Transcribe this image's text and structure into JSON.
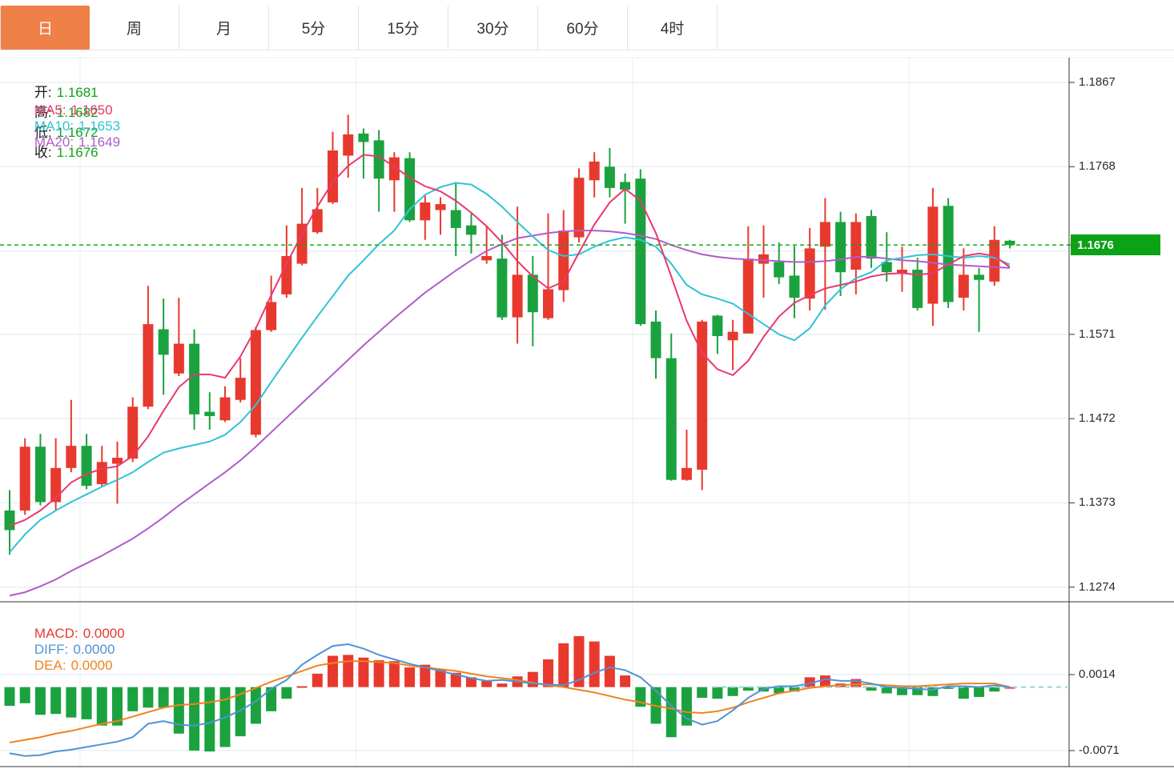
{
  "tabs": [
    {
      "label": "日",
      "active": true
    },
    {
      "label": "周",
      "active": false
    },
    {
      "label": "月",
      "active": false
    },
    {
      "label": "5分",
      "active": false
    },
    {
      "label": "15分",
      "active": false
    },
    {
      "label": "30分",
      "active": false
    },
    {
      "label": "60分",
      "active": false
    },
    {
      "label": "4时",
      "active": false
    }
  ],
  "ohlc_legend": {
    "open_label": "开:",
    "open": "1.1681",
    "high_label": "高:",
    "high": "1.1682",
    "low_label": "低:",
    "low": "1.1672",
    "close_label": "收:",
    "close": "1.1676"
  },
  "ma_legend": {
    "ma5_label": "MA5:",
    "ma5": "1.1650",
    "ma10_label": "MA10:",
    "ma10": "1.1653",
    "ma20_label": "MA20:",
    "ma20": "1.1649"
  },
  "macd_legend": {
    "macd_label": "MACD:",
    "macd": "0.0000",
    "diff_label": "DIFF:",
    "diff": "0.0000",
    "dea_label": "DEA:",
    "dea": "0.0000"
  },
  "current_price": {
    "value": 1.1676,
    "label": "1.1676"
  },
  "colors": {
    "up": "#e8392e",
    "down": "#1ba23f",
    "ma5": "#e8396e",
    "ma10": "#2fc4d4",
    "ma20": "#b05cc9",
    "diff": "#4f94d4",
    "dea": "#f0821e",
    "price_line": "#16a81c",
    "badge": "#0ba216",
    "grid": "#dfe9ee",
    "grid_v": "#e8eff3",
    "axis": "#555555",
    "zero_dash": "#97d2e0",
    "ohlc_value": "#14a01a",
    "tab_active_bg": "#ee8048"
  },
  "chart_data": {
    "type": "candlestick+macd",
    "title": "",
    "price_axis": {
      "tick_labels": [
        "1.1867",
        "1.1768",
        "1.1571",
        "1.1472",
        "1.1373",
        "1.1274"
      ],
      "tick_values": [
        1.1867,
        1.1768,
        1.1571,
        1.1472,
        1.1373,
        1.1274
      ],
      "grid_values": [
        1.1867,
        1.1768,
        1.1669,
        1.1571,
        1.1472,
        1.1373,
        1.1274
      ],
      "max": 1.1896,
      "min": 1.1254
    },
    "macd_axis": {
      "tick_labels": [
        "0.0014",
        "-0.0071"
      ],
      "tick_values": [
        0.0014,
        -0.0071
      ]
    },
    "legend_position": "top-left",
    "grid": true,
    "candles_ohlc": [
      [
        1.1364,
        1.1388,
        1.1312,
        1.1341
      ],
      [
        1.1364,
        1.1449,
        1.1359,
        1.1439
      ],
      [
        1.1439,
        1.1454,
        1.137,
        1.1374
      ],
      [
        1.1374,
        1.1449,
        1.1364,
        1.1414
      ],
      [
        1.1414,
        1.1494,
        1.1409,
        1.144
      ],
      [
        1.144,
        1.1454,
        1.1389,
        1.1393
      ],
      [
        1.1395,
        1.144,
        1.1392,
        1.1421
      ],
      [
        1.1419,
        1.1445,
        1.1372,
        1.1426
      ],
      [
        1.1425,
        1.1497,
        1.1421,
        1.1486
      ],
      [
        1.1486,
        1.1628,
        1.1483,
        1.1583
      ],
      [
        1.1577,
        1.1613,
        1.15,
        1.1547
      ],
      [
        1.1525,
        1.1614,
        1.1522,
        1.156
      ],
      [
        1.156,
        1.1577,
        1.1459,
        1.1477
      ],
      [
        1.148,
        1.1503,
        1.1459,
        1.1475
      ],
      [
        1.147,
        1.151,
        1.1468,
        1.1497
      ],
      [
        1.1494,
        1.1543,
        1.1491,
        1.152
      ],
      [
        1.1453,
        1.158,
        1.145,
        1.1576
      ],
      [
        1.1576,
        1.164,
        1.1574,
        1.1609
      ],
      [
        1.1618,
        1.1699,
        1.1614,
        1.1663
      ],
      [
        1.1654,
        1.1743,
        1.1652,
        1.1701
      ],
      [
        1.1691,
        1.1743,
        1.1689,
        1.1718
      ],
      [
        1.1726,
        1.1809,
        1.1724,
        1.1787
      ],
      [
        1.1781,
        1.1829,
        1.1755,
        1.1806
      ],
      [
        1.1807,
        1.1813,
        1.1754,
        1.1797
      ],
      [
        1.1799,
        1.1811,
        1.1715,
        1.1754
      ],
      [
        1.1752,
        1.1785,
        1.1715,
        1.1779
      ],
      [
        1.1778,
        1.1785,
        1.1703,
        1.1705
      ],
      [
        1.1705,
        1.1734,
        1.1682,
        1.1726
      ],
      [
        1.1717,
        1.1732,
        1.1688,
        1.1724
      ],
      [
        1.1717,
        1.175,
        1.1663,
        1.1696
      ],
      [
        1.1699,
        1.1713,
        1.1666,
        1.1688
      ],
      [
        1.1658,
        1.1699,
        1.1654,
        1.1663
      ],
      [
        1.166,
        1.1688,
        1.1588,
        1.1591
      ],
      [
        1.1591,
        1.1721,
        1.156,
        1.1641
      ],
      [
        1.1641,
        1.1663,
        1.1557,
        1.1597
      ],
      [
        1.159,
        1.1713,
        1.1588,
        1.1624
      ],
      [
        1.1623,
        1.1717,
        1.1609,
        1.1693
      ],
      [
        1.1685,
        1.1766,
        1.1679,
        1.1755
      ],
      [
        1.1752,
        1.1785,
        1.1732,
        1.1774
      ],
      [
        1.1768,
        1.179,
        1.1732,
        1.1743
      ],
      [
        1.175,
        1.176,
        1.1701,
        1.1741
      ],
      [
        1.1754,
        1.1765,
        1.1581,
        1.1583
      ],
      [
        1.1586,
        1.1599,
        1.1519,
        1.1543
      ],
      [
        1.1543,
        1.1572,
        1.1399,
        1.14
      ],
      [
        1.14,
        1.1459,
        1.1399,
        1.1414
      ],
      [
        1.1412,
        1.1588,
        1.1388,
        1.1586
      ],
      [
        1.1593,
        1.1594,
        1.1548,
        1.1569
      ],
      [
        1.1564,
        1.1588,
        1.1529,
        1.1574
      ],
      [
        1.1572,
        1.1698,
        1.1572,
        1.166
      ],
      [
        1.1654,
        1.1699,
        1.1614,
        1.1665
      ],
      [
        1.1656,
        1.1679,
        1.163,
        1.1638
      ],
      [
        1.164,
        1.1675,
        1.159,
        1.1614
      ],
      [
        1.1613,
        1.1696,
        1.1599,
        1.1672
      ],
      [
        1.1674,
        1.1731,
        1.16,
        1.1703
      ],
      [
        1.1703,
        1.1715,
        1.1616,
        1.1644
      ],
      [
        1.1647,
        1.1713,
        1.1618,
        1.1703
      ],
      [
        1.171,
        1.1717,
        1.1649,
        1.166
      ],
      [
        1.1656,
        1.1691,
        1.1633,
        1.1644
      ],
      [
        1.1642,
        1.1674,
        1.1621,
        1.1647
      ],
      [
        1.1647,
        1.1661,
        1.1599,
        1.1602
      ],
      [
        1.1607,
        1.1743,
        1.1581,
        1.1721
      ],
      [
        1.1722,
        1.1731,
        1.1602,
        1.1609
      ],
      [
        1.1614,
        1.1672,
        1.1599,
        1.1641
      ],
      [
        1.1641,
        1.1649,
        1.1574,
        1.1635
      ],
      [
        1.1633,
        1.1698,
        1.1628,
        1.1682
      ],
      [
        1.1681,
        1.1682,
        1.1672,
        1.1676
      ]
    ],
    "ma5": [
      1.1346,
      1.1353,
      1.1364,
      1.1379,
      1.1397,
      1.1407,
      1.1413,
      1.1416,
      1.1428,
      1.1451,
      1.1481,
      1.1509,
      1.1524,
      1.1524,
      1.152,
      1.1545,
      1.1578,
      1.1617,
      1.1654,
      1.1689,
      1.1721,
      1.175,
      1.1769,
      1.1782,
      1.178,
      1.1768,
      1.1755,
      1.1745,
      1.1739,
      1.1728,
      1.1714,
      1.1698,
      1.1679,
      1.1657,
      1.1639,
      1.1625,
      1.1633,
      1.1667,
      1.17,
      1.1726,
      1.1742,
      1.1728,
      1.169,
      1.1639,
      1.1587,
      1.1549,
      1.153,
      1.1523,
      1.154,
      1.1568,
      1.1592,
      1.1608,
      1.1617,
      1.1625,
      1.1629,
      1.1633,
      1.1639,
      1.1642,
      1.1643,
      1.1641,
      1.1643,
      1.1653,
      1.1663,
      1.1666,
      1.1663,
      1.165
    ],
    "ma10": [
      1.1315,
      1.1336,
      1.1353,
      1.1364,
      1.1374,
      1.1383,
      1.1392,
      1.14,
      1.1409,
      1.1421,
      1.1432,
      1.1437,
      1.1441,
      1.1445,
      1.1453,
      1.1468,
      1.1488,
      1.1515,
      1.1541,
      1.1567,
      1.1592,
      1.1616,
      1.164,
      1.1658,
      1.1677,
      1.1693,
      1.1718,
      1.1735,
      1.1744,
      1.1749,
      1.1747,
      1.1736,
      1.1721,
      1.1703,
      1.1686,
      1.167,
      1.1663,
      1.1665,
      1.1674,
      1.1681,
      1.1685,
      1.1682,
      1.1674,
      1.1654,
      1.1629,
      1.1618,
      1.1613,
      1.1607,
      1.1595,
      1.1583,
      1.1571,
      1.1564,
      1.1578,
      1.1605,
      1.1624,
      1.1637,
      1.1644,
      1.1658,
      1.1661,
      1.1664,
      1.1665,
      1.1663,
      1.1661,
      1.1663,
      1.1661,
      1.1653
    ],
    "ma20": [
      1.1264,
      1.1268,
      1.1275,
      1.1283,
      1.1293,
      1.1302,
      1.1311,
      1.1321,
      1.1331,
      1.1343,
      1.1356,
      1.137,
      1.1383,
      1.1396,
      1.1409,
      1.1423,
      1.1439,
      1.1456,
      1.1473,
      1.149,
      1.1507,
      1.1524,
      1.1541,
      1.1558,
      1.1574,
      1.159,
      1.1605,
      1.162,
      1.1633,
      1.1646,
      1.1658,
      1.1669,
      1.1677,
      1.1684,
      1.1687,
      1.169,
      1.1692,
      1.1693,
      1.1693,
      1.1692,
      1.169,
      1.1687,
      1.1683,
      1.1676,
      1.167,
      1.1665,
      1.1662,
      1.166,
      1.1659,
      1.1658,
      1.1657,
      1.1656,
      1.1656,
      1.1657,
      1.1659,
      1.1662,
      1.1662,
      1.166,
      1.1658,
      1.1657,
      1.1655,
      1.1653,
      1.1652,
      1.1651,
      1.165,
      1.1649
    ],
    "macd_hist": [
      -0.0021,
      -0.0018,
      -0.0031,
      -0.003,
      -0.0034,
      -0.0036,
      -0.0043,
      -0.0043,
      -0.0027,
      -0.0023,
      -0.0023,
      -0.0052,
      -0.0071,
      -0.0072,
      -0.0067,
      -0.0055,
      -0.0041,
      -0.0027,
      -0.0013,
      0.0001,
      0.0015,
      0.0035,
      0.0036,
      0.0033,
      0.003,
      0.0029,
      0.0022,
      0.0025,
      0.002,
      0.0016,
      0.0011,
      0.0007,
      0.0004,
      0.0012,
      0.0017,
      0.0031,
      0.0049,
      0.0057,
      0.0051,
      0.0035,
      0.0013,
      -0.0022,
      -0.0041,
      -0.0056,
      -0.0043,
      -0.0012,
      -0.0013,
      -0.001,
      -0.0004,
      -0.0005,
      -0.0007,
      -0.0005,
      0.0011,
      0.0013,
      0.0004,
      0.0009,
      -0.0004,
      -0.0007,
      -0.0009,
      -0.0009,
      -0.001,
      -0.0002,
      -0.0013,
      -0.0011,
      -0.0005,
      0.0
    ],
    "diff": [
      -0.0074,
      -0.0077,
      -0.0076,
      -0.0072,
      -0.007,
      -0.0067,
      -0.0064,
      -0.0061,
      -0.0056,
      -0.0041,
      -0.0038,
      -0.0042,
      -0.0043,
      -0.004,
      -0.0034,
      -0.0026,
      -0.0016,
      -0.0002,
      0.0008,
      0.0025,
      0.0036,
      0.0046,
      0.0048,
      0.0043,
      0.0036,
      0.0031,
      0.0026,
      0.0022,
      0.0018,
      0.0014,
      0.001,
      0.0007,
      0.0008,
      0.0006,
      0.0004,
      0.0003,
      0.0002,
      0.0008,
      0.0016,
      0.0022,
      0.0019,
      0.0011,
      -0.0004,
      -0.0021,
      -0.0035,
      -0.0042,
      -0.0038,
      -0.0026,
      -0.0012,
      -0.0002,
      0.0001,
      0.0001,
      0.0004,
      0.0009,
      0.0007,
      0.0007,
      0.0004,
      0.0,
      -0.0001,
      -0.0002,
      -0.0003,
      0.0001,
      0.0001,
      0.0,
      0.0002,
      0.0
    ],
    "dea": [
      -0.0062,
      -0.0059,
      -0.0056,
      -0.0052,
      -0.0049,
      -0.0045,
      -0.0041,
      -0.0038,
      -0.0033,
      -0.0028,
      -0.0023,
      -0.002,
      -0.0019,
      -0.0017,
      -0.0014,
      -0.0008,
      -0.0001,
      0.0006,
      0.0012,
      0.0018,
      0.0024,
      0.0027,
      0.0029,
      0.0029,
      0.0028,
      0.0027,
      0.0024,
      0.0022,
      0.002,
      0.0018,
      0.0015,
      0.0012,
      0.001,
      0.0008,
      0.0005,
      0.0002,
      0.0,
      -0.0003,
      -0.0006,
      -0.001,
      -0.0014,
      -0.0017,
      -0.0021,
      -0.0024,
      -0.0028,
      -0.0029,
      -0.0027,
      -0.0023,
      -0.0017,
      -0.0012,
      -0.0007,
      -0.0004,
      -0.0001,
      0.0001,
      0.0002,
      0.0003,
      0.0003,
      0.0002,
      0.0001,
      0.0001,
      0.0002,
      0.0003,
      0.0004,
      0.0004,
      0.0004,
      0.0
    ],
    "x_gridlines": [
      100,
      445,
      790,
      1135
    ]
  }
}
